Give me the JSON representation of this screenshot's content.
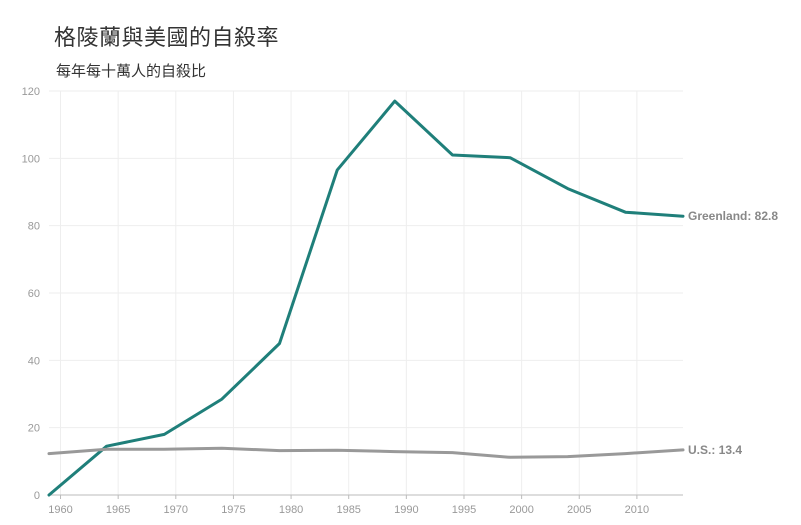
{
  "header": {
    "title": "格陵蘭與美國的自殺率",
    "subtitle": "每年每十萬人的自殺比"
  },
  "colors": {
    "greenland": "#1f7f7a",
    "us": "#999999",
    "grid": "#eeeeee",
    "axis": "#bbbbbb"
  },
  "chart_data": {
    "type": "line",
    "title": "格陵蘭與美國的自殺率",
    "subtitle": "每年每十萬人的自殺比",
    "xlabel": "",
    "ylabel": "",
    "xlim": [
      1959,
      2014
    ],
    "ylim": [
      0,
      120
    ],
    "x_ticks": [
      1960,
      1965,
      1970,
      1975,
      1980,
      1985,
      1990,
      1995,
      2000,
      2005,
      2010
    ],
    "y_ticks": [
      0,
      20,
      40,
      60,
      80,
      100,
      120
    ],
    "grid": true,
    "series": [
      {
        "key": "greenland",
        "end_label": "Greenland: 82.8",
        "x": [
          1959,
          1964,
          1969,
          1974,
          1979,
          1984,
          1989,
          1994,
          1999,
          2004,
          2009,
          2014
        ],
        "values": [
          0,
          14.5,
          18,
          28.5,
          45,
          96.5,
          117,
          101,
          100.2,
          91,
          84,
          82.8
        ]
      },
      {
        "key": "us",
        "end_label": "U.S.: 13.4",
        "x": [
          1959,
          1964,
          1969,
          1974,
          1979,
          1984,
          1989,
          1994,
          1999,
          2004,
          2009,
          2014
        ],
        "values": [
          12.3,
          13.6,
          13.6,
          13.9,
          13.2,
          13.3,
          12.9,
          12.6,
          11.2,
          11.4,
          12.3,
          13.4
        ]
      }
    ]
  }
}
